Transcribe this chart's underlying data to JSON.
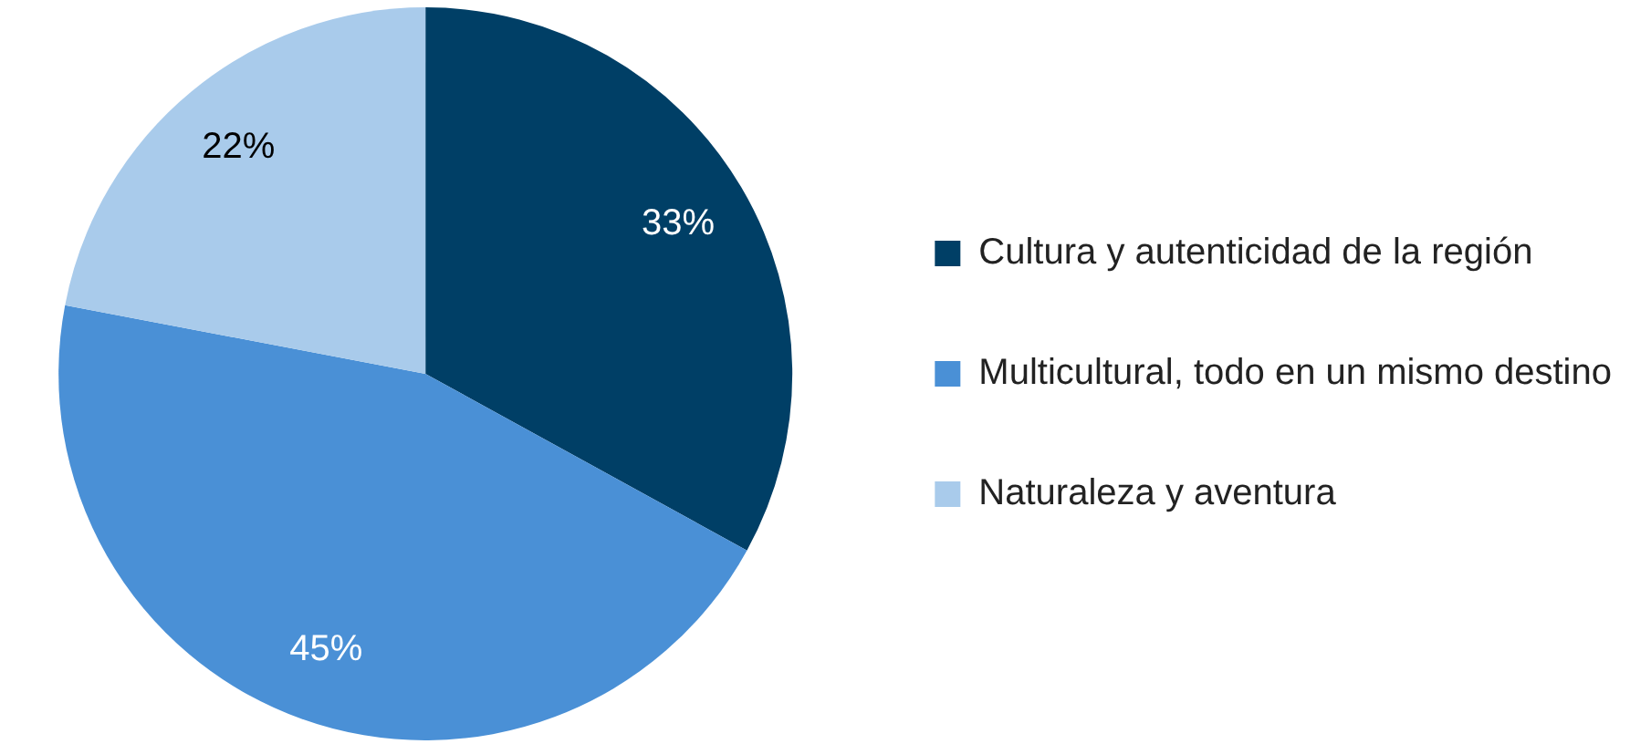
{
  "chart_data": {
    "type": "pie",
    "categories": [
      "Cultura y autenticidad de la región",
      "Multicultural, todo en un mismo destino",
      "Naturaleza y aventura"
    ],
    "values": [
      33,
      45,
      22
    ],
    "colors": [
      "#003f66",
      "#4a90d6",
      "#a9cbeb"
    ],
    "value_labels": [
      "33%",
      "45%",
      "22%"
    ],
    "legend": "right"
  }
}
